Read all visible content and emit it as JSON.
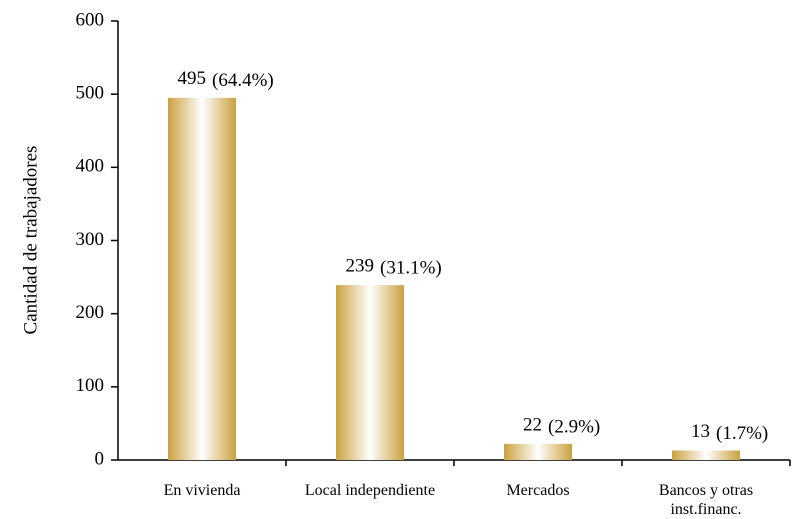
{
  "chart_data": {
    "type": "bar",
    "ylabel": "Cantidad de trabajadores",
    "categories": [
      "En vivienda",
      "Local independiente",
      "Mercados",
      "Bancos y otras inst.financ."
    ],
    "values": [
      495,
      239,
      22,
      13
    ],
    "share_labels": [
      "(64.4%)",
      "(31.1%)",
      "(2.9%)",
      "(1.7%)"
    ],
    "color": "#c9a13f",
    "ylim": [
      0,
      600
    ],
    "yticks": [
      0,
      100,
      200,
      300,
      400,
      500,
      600
    ],
    "grid": false
  }
}
